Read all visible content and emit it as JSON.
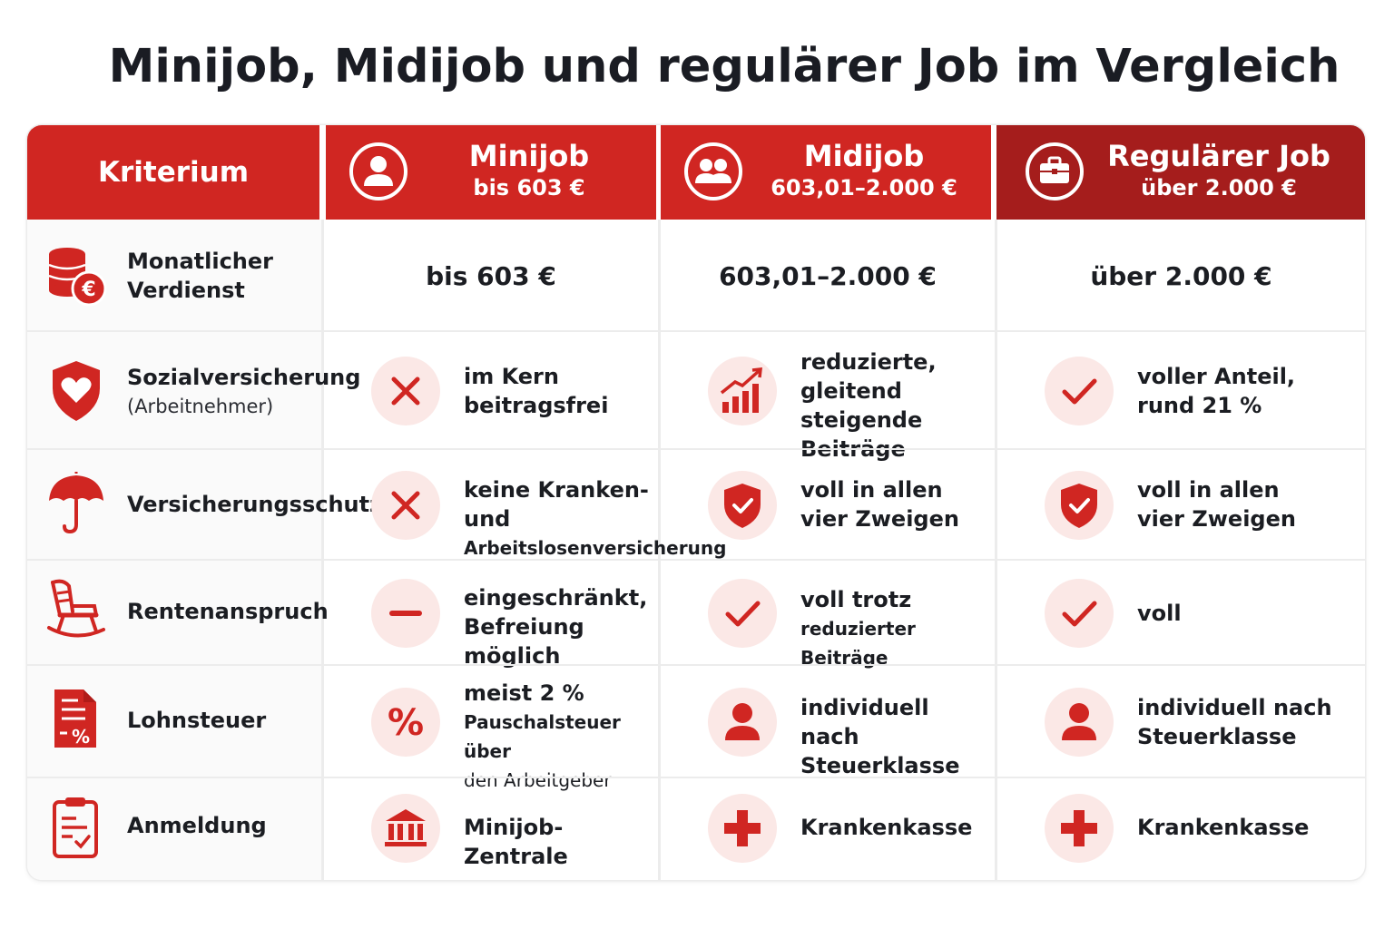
{
  "title": "Minijob, Midijob und regulärer Job im Vergleich",
  "colors": {
    "accent": "#d02622",
    "accent_dark": "#a51d1c",
    "icon_bg": "#fbe8e6"
  },
  "header": {
    "criterion": "Kriterium",
    "columns": [
      {
        "name": "Minijob",
        "range": "bis 603 €",
        "icon": "person-icon"
      },
      {
        "name": "Midijob",
        "range": "603,01–2.000 €",
        "icon": "people-icon"
      },
      {
        "name": "Regulärer Job",
        "range": "über 2.000 €",
        "icon": "briefcase-icon"
      }
    ]
  },
  "rows": [
    {
      "label_lines": [
        "Monatlicher",
        "Verdienst"
      ],
      "sub": "",
      "icon": "coins-euro-icon",
      "cells": [
        {
          "lines": [
            "bis 603 €"
          ]
        },
        {
          "lines": [
            "603,01–2.000 €"
          ]
        },
        {
          "lines": [
            "über 2.000 €"
          ]
        }
      ]
    },
    {
      "label_lines": [
        "Sozialversicherung"
      ],
      "sub": "(Arbeitnehmer)",
      "icon": "shield-heart-icon",
      "cells": [
        {
          "icon": "cross-icon",
          "lines": [
            "im Kern",
            "beitragsfrei"
          ]
        },
        {
          "icon": "rising-chart-icon",
          "lines": [
            "reduzierte,",
            "gleitend steigende",
            "Beiträge"
          ]
        },
        {
          "icon": "check-icon",
          "lines": [
            "voller Anteil,",
            "rund 21 %"
          ]
        }
      ]
    },
    {
      "label_lines": [
        "Versicherungsschutz"
      ],
      "sub": "",
      "icon": "umbrella-icon",
      "cells": [
        {
          "icon": "cross-icon",
          "lines": [
            "keine Kranken- und",
            "Arbeitslosenversicherung"
          ]
        },
        {
          "icon": "shield-check-icon",
          "lines": [
            "voll in allen",
            "vier Zweigen"
          ]
        },
        {
          "icon": "shield-check-icon",
          "lines": [
            "voll in allen",
            "vier Zweigen"
          ]
        }
      ]
    },
    {
      "label_lines": [
        "Rentenanspruch"
      ],
      "sub": "",
      "icon": "rocking-chair-icon",
      "cells": [
        {
          "icon": "minus-icon",
          "lines": [
            "eingeschränkt,",
            "Befreiung möglich"
          ]
        },
        {
          "icon": "check-icon",
          "lines": [
            "voll trotz",
            "reduzierter Beiträge"
          ]
        },
        {
          "icon": "check-icon",
          "lines": [
            "voll"
          ]
        }
      ]
    },
    {
      "label_lines": [
        "Lohnsteuer"
      ],
      "sub": "",
      "icon": "tax-document-icon",
      "cells": [
        {
          "icon": "percent-icon",
          "lines": [
            "meist 2 %",
            "Pauschalsteuer über",
            "den Arbeitgeber"
          ]
        },
        {
          "icon": "person-icon",
          "lines": [
            "individuell nach",
            "Steuerklasse"
          ]
        },
        {
          "icon": "person-icon",
          "lines": [
            "individuell nach",
            "Steuerklasse"
          ]
        }
      ]
    },
    {
      "label_lines": [
        "Anmeldung"
      ],
      "sub": "",
      "icon": "clipboard-icon",
      "cells": [
        {
          "icon": "bank-icon",
          "lines": [
            "Minijob-Zentrale"
          ]
        },
        {
          "icon": "medical-cross-icon",
          "lines": [
            "Krankenkasse"
          ]
        },
        {
          "icon": "medical-cross-icon",
          "lines": [
            "Krankenkasse"
          ]
        }
      ]
    }
  ]
}
